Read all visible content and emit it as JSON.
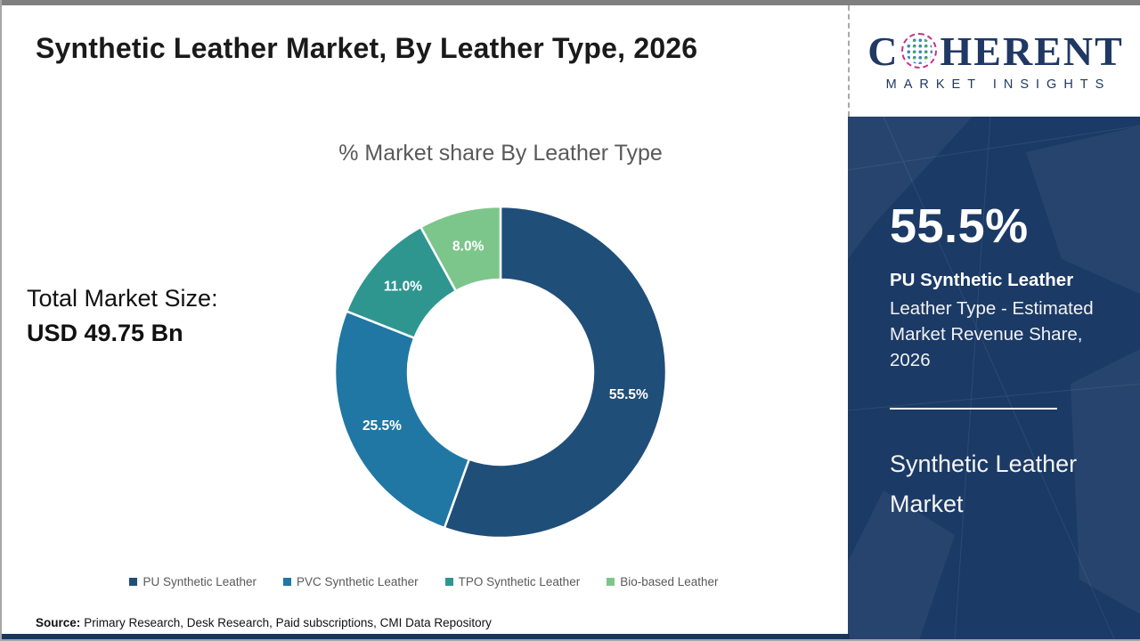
{
  "page": {
    "title": "Synthetic Leather Market, By Leather Type, 2026"
  },
  "logo": {
    "brand_first_letter": "C",
    "brand_rest": "HERENT",
    "tagline": "MARKET INSIGHTS",
    "globe_icon_colors": {
      "outer_ring": "#c2348b",
      "dots_blue": "#3a87b7",
      "dots_green": "#62b54c"
    },
    "brand_color": "#1f3864"
  },
  "chart_data": {
    "type": "pie",
    "subtype": "donut",
    "title": "% Market share By Leather Type",
    "categories": [
      "PU Synthetic Leather",
      "PVC Synthetic Leather",
      "TPO Synthetic Leather",
      "Bio-based Leather"
    ],
    "values": [
      55.5,
      25.5,
      11.0,
      8.0
    ],
    "value_labels": [
      "55.5%",
      "25.5%",
      "11.0%",
      "8.0%"
    ],
    "colors": [
      "#1f4e79",
      "#2077a4",
      "#2e968f",
      "#7cc68c"
    ],
    "unit": "%",
    "start_angle_deg": 0,
    "direction": "clockwise",
    "legend_position": "bottom"
  },
  "total_market": {
    "label": "Total Market Size:",
    "value": "USD 49.75 Bn"
  },
  "sidebar": {
    "headline_value": "55.5%",
    "headline_label": "PU Synthetic Leather",
    "description": "Leather Type - Estimated Market Revenue Share, 2026",
    "footer_title": "Synthetic Leather Market",
    "background_color": "#1b3a66"
  },
  "source": {
    "label": "Source:",
    "text": "Primary Research, Desk Research, Paid subscriptions, CMI Data Repository"
  },
  "chrome_colors": {
    "top_bar": "#7f7f7f",
    "bottom_bar": "#17365d"
  }
}
